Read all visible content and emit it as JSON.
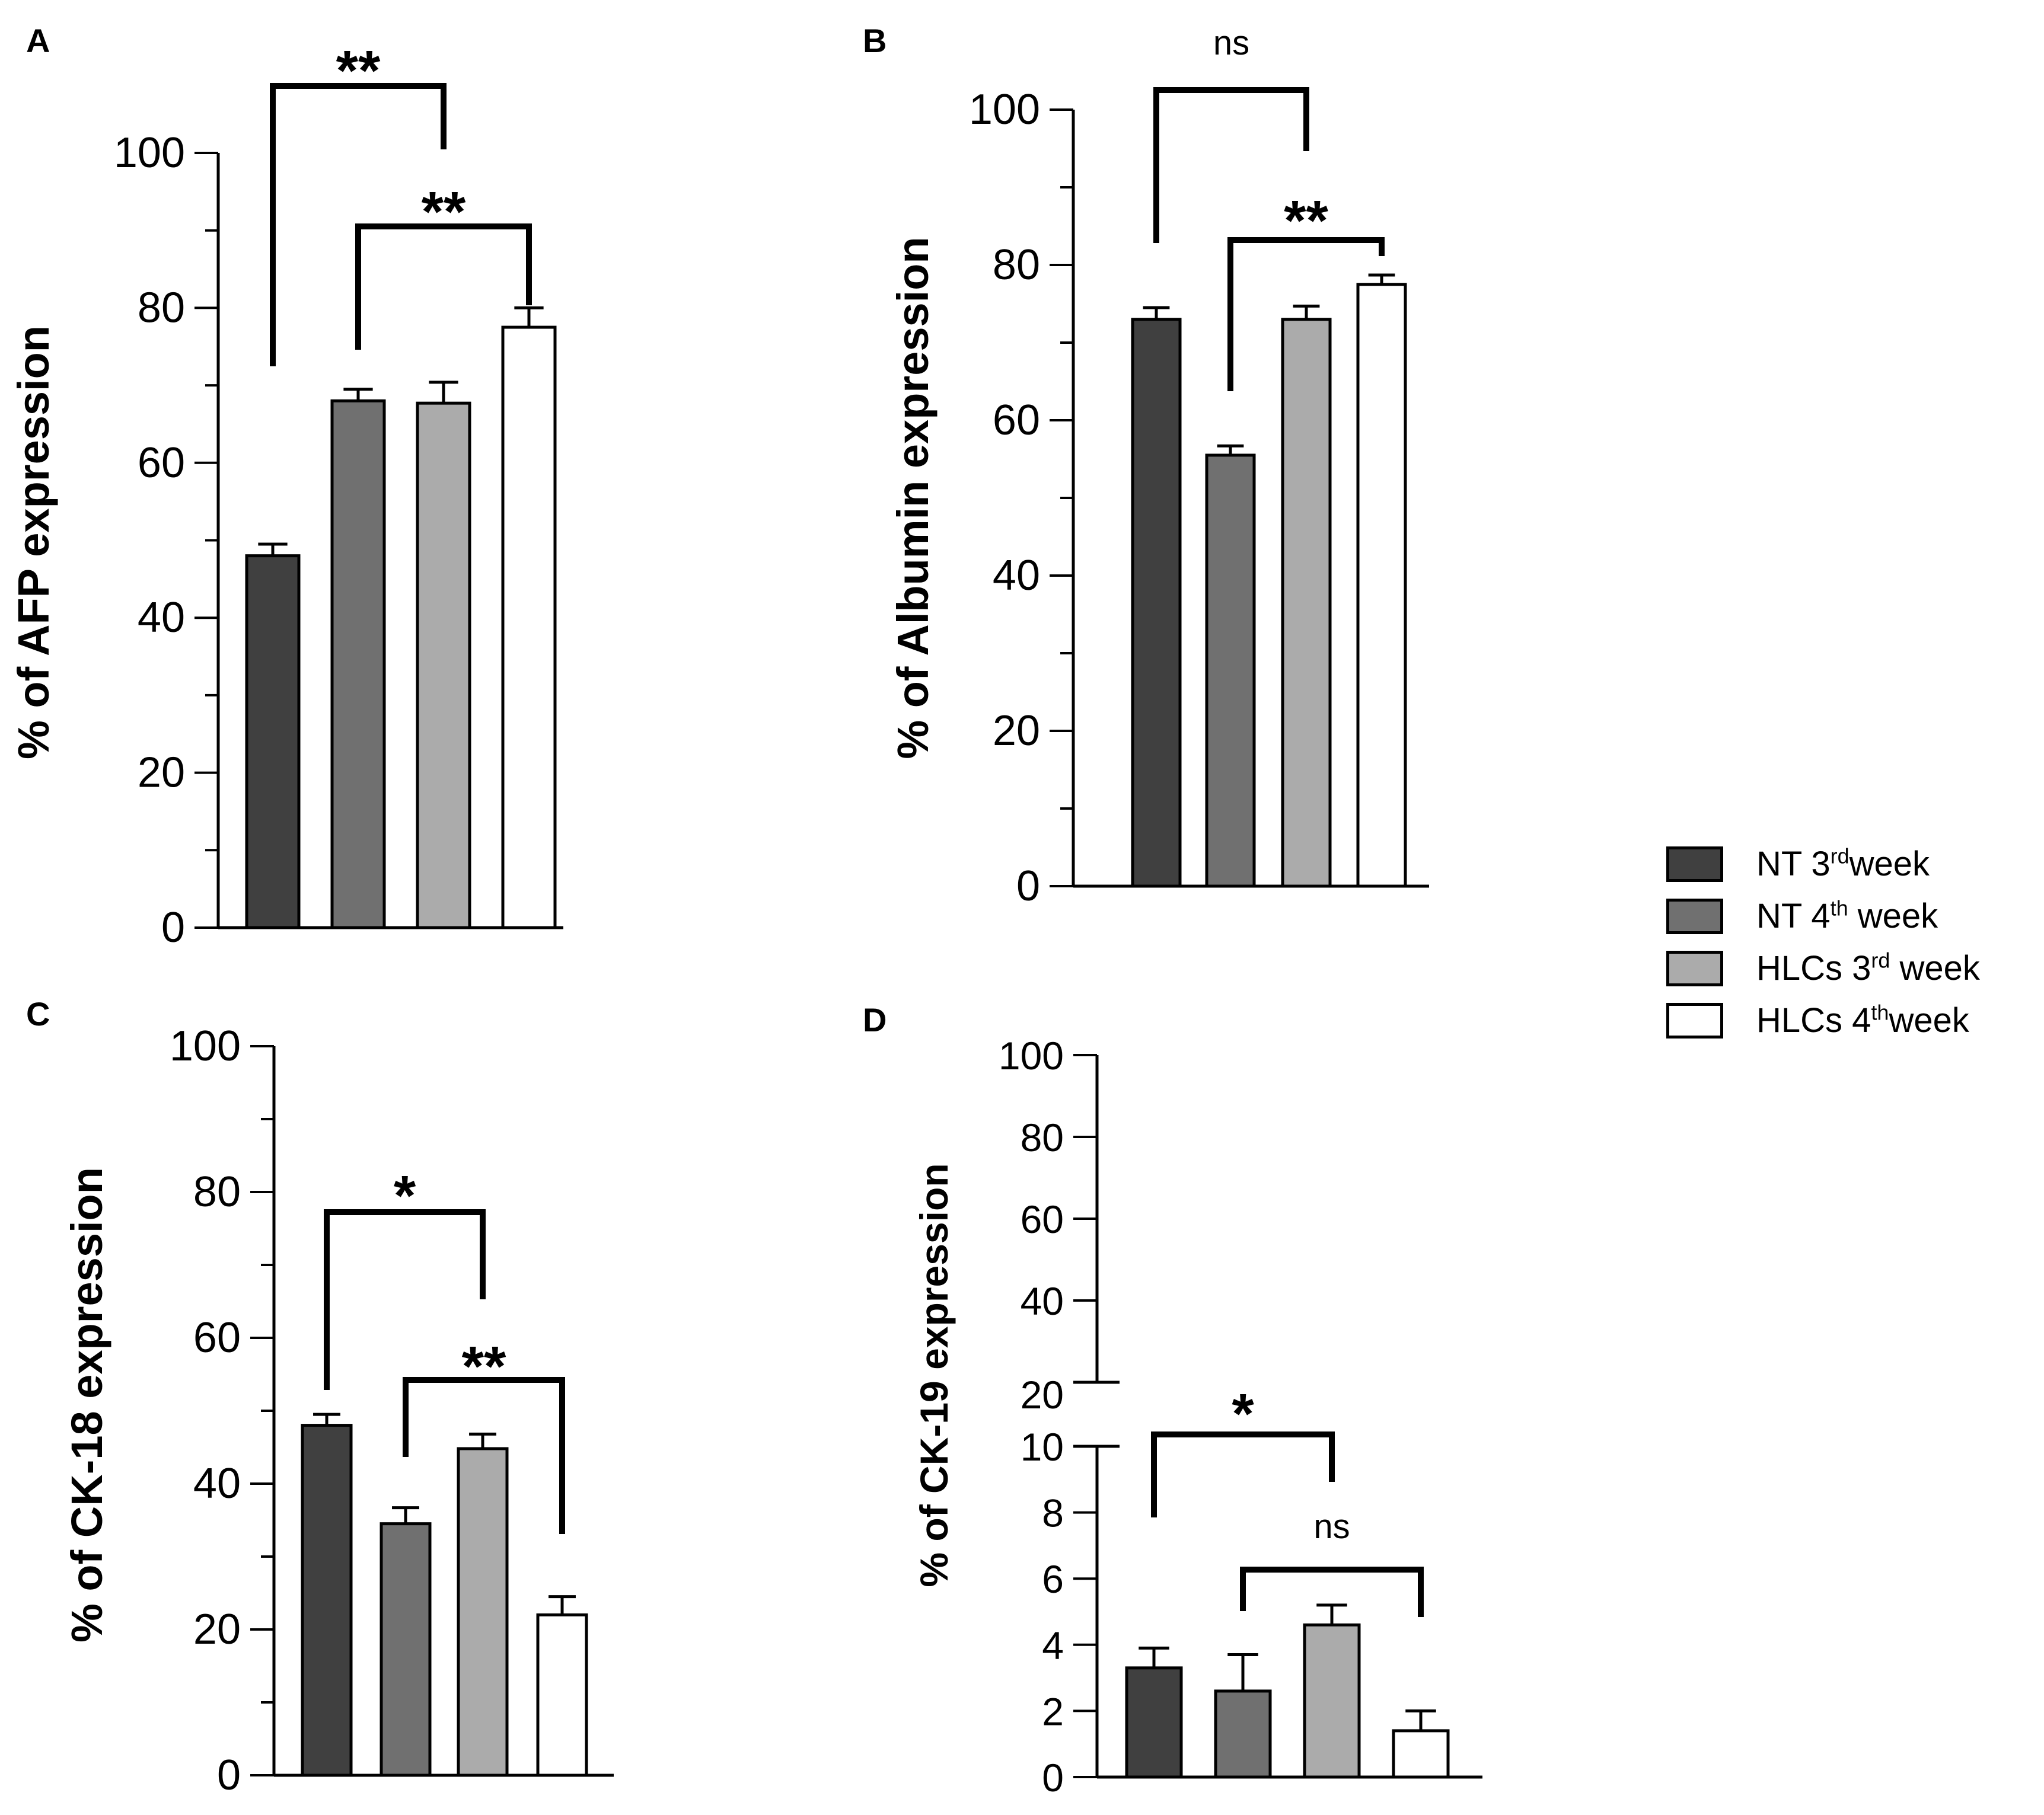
{
  "colors": {
    "series": [
      "#404040",
      "#707070",
      "#ababab",
      "#ffffff"
    ],
    "axis": "#000000"
  },
  "legend": {
    "items": [
      {
        "label": "NT 3",
        "sup": "rd",
        "suffix": "week"
      },
      {
        "label": "NT 4",
        "sup": "th",
        "suffix": " week"
      },
      {
        "label": "HLCs 3",
        "sup": "rd",
        "suffix": " week"
      },
      {
        "label": "HLCs 4",
        "sup": "th",
        "suffix": "week"
      }
    ]
  },
  "chart_data": [
    {
      "panel": "A",
      "type": "bar",
      "ylabel": "% of AFP expression",
      "categories": [
        "NT 3rd week",
        "NT 4th week",
        "HLCs 3rd week",
        "HLCs 4th week"
      ],
      "values": [
        48,
        68,
        67.7,
        77.5
      ],
      "errors": [
        1.5,
        1.5,
        2.7,
        2.5
      ],
      "ylim": [
        0,
        100
      ],
      "yticks": [
        0,
        20,
        40,
        60,
        80,
        100
      ],
      "significance": [
        {
          "from": 0,
          "to": 2,
          "label": "**"
        },
        {
          "from": 1,
          "to": 3,
          "label": "**"
        }
      ]
    },
    {
      "panel": "B",
      "type": "bar",
      "ylabel": "% of Albumin expression",
      "categories": [
        "NT 3rd week",
        "NT 4th week",
        "HLCs 3rd week",
        "HLCs 4th week"
      ],
      "values": [
        73,
        55.5,
        73,
        77.5
      ],
      "errors": [
        1.5,
        1.2,
        1.7,
        1.2
      ],
      "ylim": [
        0,
        100
      ],
      "yticks": [
        0,
        20,
        40,
        60,
        80,
        100
      ],
      "significance": [
        {
          "from": 0,
          "to": 2,
          "label": "ns"
        },
        {
          "from": 1,
          "to": 3,
          "label": "**"
        }
      ]
    },
    {
      "panel": "C",
      "type": "bar",
      "ylabel": "% of CK-18 expression",
      "categories": [
        "NT 3rd week",
        "NT 4th week",
        "HLCs 3rd week",
        "HLCs 4th week"
      ],
      "values": [
        48,
        34.5,
        44.8,
        22
      ],
      "errors": [
        1.5,
        2.2,
        2.0,
        2.5
      ],
      "ylim": [
        0,
        100
      ],
      "yticks": [
        0,
        20,
        40,
        60,
        80,
        100
      ],
      "significance": [
        {
          "from": 0,
          "to": 2,
          "label": "*"
        },
        {
          "from": 1,
          "to": 3,
          "label": "**"
        }
      ]
    },
    {
      "panel": "D",
      "type": "bar",
      "ylabel": "% of CK-19 expression",
      "categories": [
        "NT 3rd week",
        "NT 4th week",
        "HLCs 3rd week",
        "HLCs 4th week"
      ],
      "values": [
        3.3,
        2.6,
        4.6,
        1.4
      ],
      "errors": [
        0.6,
        1.1,
        0.6,
        0.6
      ],
      "ylim": [
        0,
        100
      ],
      "y_break": [
        10,
        20
      ],
      "yticks_lower": [
        0,
        2,
        4,
        6,
        8,
        10
      ],
      "yticks_upper": [
        20,
        40,
        60,
        80,
        100
      ],
      "significance": [
        {
          "from": 0,
          "to": 2,
          "label": "*"
        },
        {
          "from": 1,
          "to": 3,
          "label": "ns"
        }
      ]
    }
  ]
}
